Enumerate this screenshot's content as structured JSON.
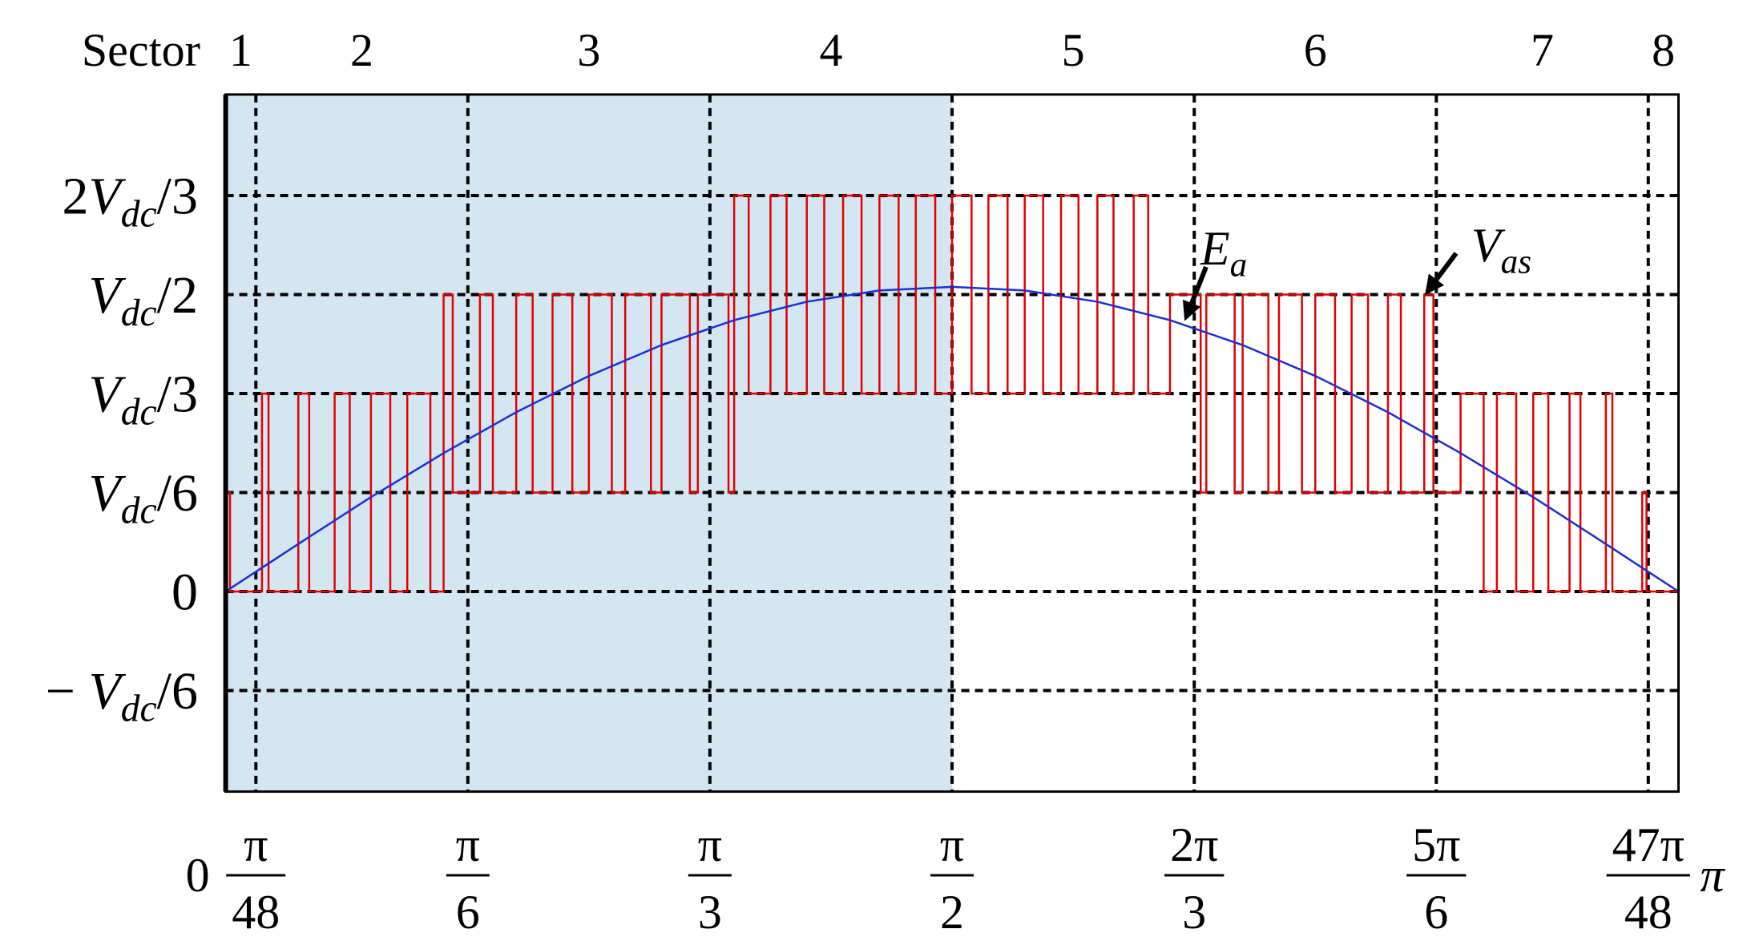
{
  "chart_data": {
    "type": "line",
    "sector_label": "Sector",
    "sectors": [
      "1",
      "2",
      "3",
      "4",
      "5",
      "6",
      "7",
      "8"
    ],
    "highlight_xrange": [
      0,
      0.5
    ],
    "highlight_color": "#d5e6f3",
    "xlim": [
      0,
      1
    ],
    "ylim": [
      -0.337,
      0.837
    ],
    "xticks": [
      0,
      {
        "value": 0.0208,
        "label": {
          "num": "π",
          "den": "48"
        }
      },
      {
        "value": 0.1667,
        "label": {
          "num": "π",
          "den": "6"
        }
      },
      {
        "value": 0.3333,
        "label": {
          "num": "π",
          "den": "3"
        }
      },
      {
        "value": 0.5,
        "label": {
          "num": "π",
          "den": "2"
        }
      },
      {
        "value": 0.6667,
        "label": {
          "num": "2π",
          "den": "3"
        }
      },
      {
        "value": 0.8333,
        "label": {
          "num": "5π",
          "den": "6"
        }
      },
      {
        "value": 0.9792,
        "label": {
          "num": "47π",
          "den": "48"
        }
      },
      {
        "value": 1,
        "label": "π"
      }
    ],
    "yticks": [
      {
        "value": 0.6667,
        "label": "2Vdc/3"
      },
      {
        "value": 0.5,
        "label": "Vdc/2"
      },
      {
        "value": 0.3333,
        "label": "Vdc/3"
      },
      {
        "value": 0.1667,
        "label": "Vdc/6"
      },
      0,
      {
        "value": -0.1667,
        "label": "− Vdc/6"
      }
    ],
    "grid": true,
    "series": [
      {
        "name": "Ea",
        "color": "#1a2fd6",
        "x": [
          0,
          0.05,
          0.1,
          0.15,
          0.2,
          0.25,
          0.3,
          0.35,
          0.4,
          0.45,
          0.5,
          0.55,
          0.6,
          0.65,
          0.7,
          0.75,
          0.8,
          0.85,
          0.9,
          0.95,
          1
        ],
        "values": [
          0,
          0.08,
          0.159,
          0.233,
          0.302,
          0.363,
          0.415,
          0.457,
          0.488,
          0.507,
          0.513,
          0.507,
          0.488,
          0.457,
          0.415,
          0.363,
          0.302,
          0.233,
          0.159,
          0.08,
          0
        ]
      },
      {
        "name": "Vas",
        "color": "#e30000",
        "step": true,
        "x": [
          0,
          0.003,
          0.025,
          0.0295,
          0.05,
          0.0575,
          0.075,
          0.0854,
          0.1,
          0.1133,
          0.125,
          0.1409,
          0.15,
          0.1563,
          0.175,
          0.1839,
          0.2,
          0.2113,
          0.225,
          0.2386,
          0.25,
          0.2658,
          0.275,
          0.2927,
          0.3,
          0.3195,
          0.325,
          0.3461,
          0.35,
          0.36,
          0.375,
          0.3861,
          0.4,
          0.412,
          0.425,
          0.4377,
          0.45,
          0.4632,
          0.475,
          0.4884,
          0.5,
          0.5134,
          0.525,
          0.5382,
          0.55,
          0.5627,
          0.575,
          0.587,
          0.6,
          0.6111,
          0.625,
          0.635,
          0.65,
          0.6711,
          0.675,
          0.6945,
          0.7,
          0.7177,
          0.725,
          0.7408,
          0.75,
          0.7636,
          0.775,
          0.7863,
          0.8,
          0.8089,
          0.825,
          0.8313,
          0.85,
          0.8659,
          0.875,
          0.8883,
          0.9,
          0.9104,
          0.925,
          0.9325,
          0.95,
          0.9545,
          0.975,
          0.978,
          1
        ],
        "values": [
          0.1667,
          0,
          0.3333,
          0,
          0.3333,
          0,
          0.3333,
          0,
          0.3333,
          0,
          0.3333,
          0,
          0.5,
          0.1667,
          0.5,
          0.1667,
          0.5,
          0.1667,
          0.5,
          0.1667,
          0.5,
          0.1667,
          0.5,
          0.1667,
          0.5,
          0.1667,
          0.5,
          0.1667,
          0.6667,
          0.3333,
          0.6667,
          0.3333,
          0.6667,
          0.3333,
          0.6667,
          0.3333,
          0.6667,
          0.3333,
          0.6667,
          0.3333,
          0.6667,
          0.3333,
          0.6667,
          0.3333,
          0.6667,
          0.3333,
          0.6667,
          0.3333,
          0.6667,
          0.3333,
          0.6667,
          0.3333,
          0.5,
          0.1667,
          0.5,
          0.1667,
          0.5,
          0.1667,
          0.5,
          0.1667,
          0.5,
          0.1667,
          0.5,
          0.1667,
          0.5,
          0.1667,
          0.5,
          0.1667,
          0.3333,
          0,
          0.3333,
          0,
          0.3333,
          0,
          0.3333,
          0,
          0.3333,
          0,
          0.1667,
          0,
          0
        ]
      }
    ]
  }
}
